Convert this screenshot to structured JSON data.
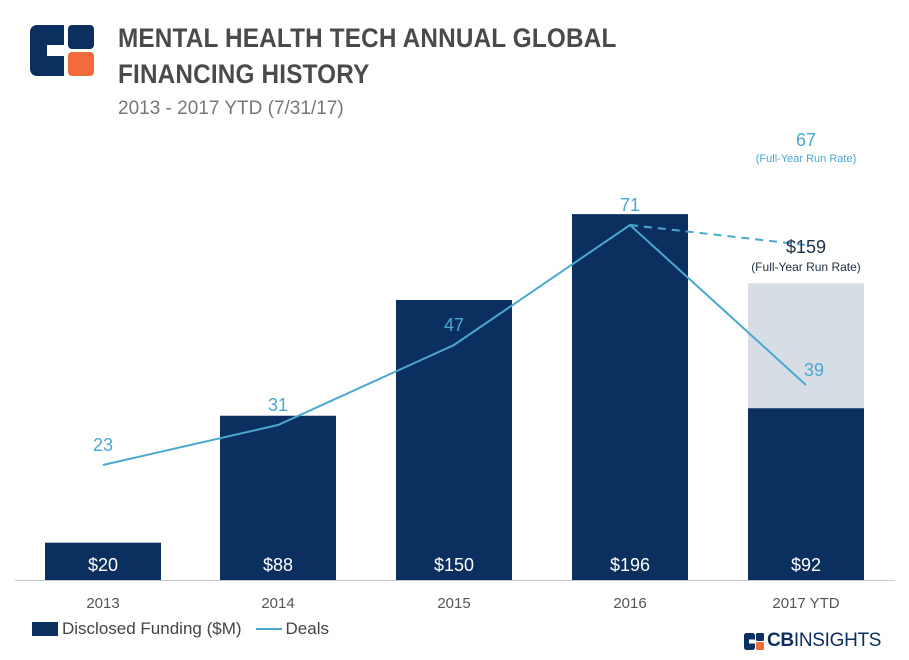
{
  "header": {
    "title": "MENTAL HEALTH TECH ANNUAL GLOBAL FINANCING HISTORY",
    "subtitle": "2013 - 2017 YTD (7/31/17)"
  },
  "colors": {
    "funding_bar": "#0b2f5e",
    "run_rate_bar": "#d6dde5",
    "deals_line": "#4aa8cf",
    "logo_blue": "#0b2f5e",
    "logo_orange": "#f26b3a"
  },
  "chart_data": {
    "type": "bar",
    "title": "MENTAL HEALTH TECH ANNUAL GLOBAL FINANCING HISTORY",
    "subtitle": "2013 - 2017 YTD (7/31/17)",
    "categories": [
      "2013",
      "2014",
      "2015",
      "2016",
      "2017 YTD"
    ],
    "series": [
      {
        "name": "Disclosed Funding ($M)",
        "type": "bar",
        "values": [
          20,
          88,
          150,
          196,
          92
        ],
        "labels": [
          "$20",
          "$88",
          "$150",
          "$196",
          "$92"
        ]
      },
      {
        "name": "Deals",
        "type": "line",
        "values": [
          23,
          31,
          47,
          71,
          39
        ],
        "labels": [
          "23",
          "31",
          "47",
          "71",
          "39"
        ]
      }
    ],
    "funding_run_rate": {
      "category": "2017 YTD",
      "value": 159,
      "label": "$159",
      "note": "(Full-Year Run Rate)"
    },
    "deals_run_rate": {
      "category": "2017 YTD",
      "value": 67,
      "label": "67",
      "note": "(Full-Year Run Rate)"
    },
    "ylim_funding": [
      0,
      225
    ],
    "ylim_deals": [
      0,
      100
    ],
    "legend_position": "bottom-left",
    "grid": false
  },
  "legend": {
    "funding_label": "Disclosed Funding ($M)",
    "deals_label": "Deals"
  },
  "brand": {
    "bold": "CB",
    "thin": "INSIGHTS"
  }
}
